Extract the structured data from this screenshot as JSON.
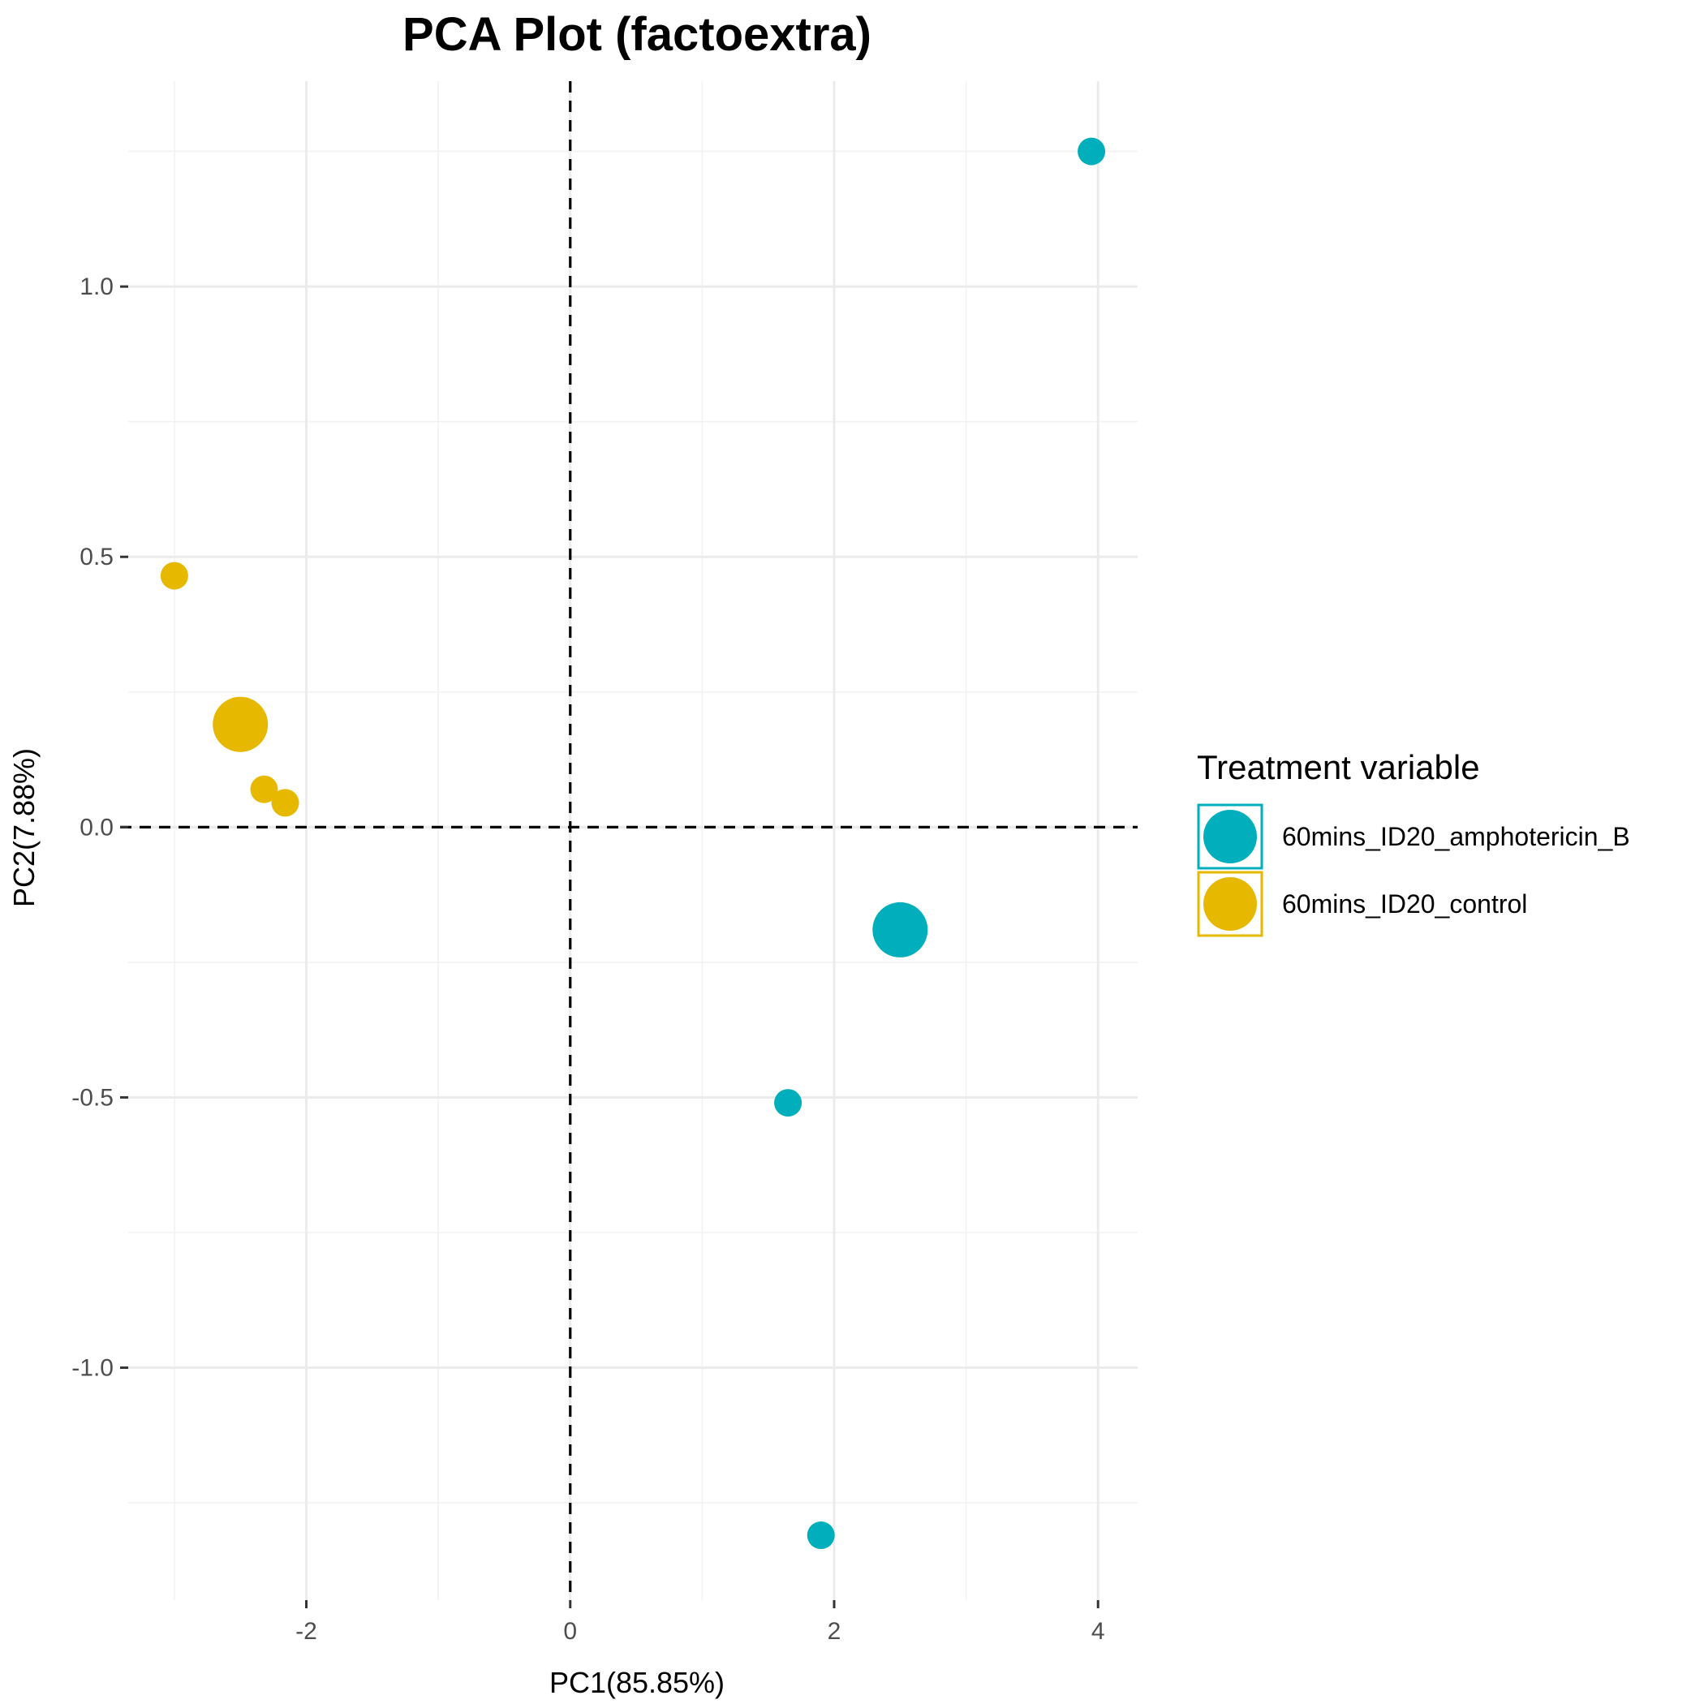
{
  "chart_data": {
    "type": "scatter",
    "title": "PCA Plot (factoextra)",
    "xlabel": "PC1(85.85%)",
    "ylabel": "PC2(7.88%)",
    "xlim": [
      -3.35,
      4.3
    ],
    "ylim": [
      -1.43,
      1.38
    ],
    "x_ticks": [
      -2,
      0,
      2,
      4
    ],
    "x_tick_labels": [
      "-2",
      "0",
      "2",
      "4"
    ],
    "y_ticks": [
      -1.0,
      -0.5,
      0.0,
      0.5,
      1.0
    ],
    "y_tick_labels": [
      "-1.0",
      "-0.5",
      "0.0",
      "0.5",
      "1.0"
    ],
    "grid": true,
    "reference_lines": {
      "x": 0,
      "y": 0,
      "style": "dashed"
    },
    "legend": {
      "title": "Treatment variable",
      "position": "right",
      "entries": [
        {
          "label": "60mins_ID20_amphotericin_B",
          "color": "#00AFBB"
        },
        {
          "label": "60mins_ID20_control",
          "color": "#E7B800"
        }
      ]
    },
    "series": [
      {
        "name": "60mins_ID20_amphotericin_B",
        "color": "#00AFBB",
        "points": [
          {
            "x": 3.95,
            "y": 1.25
          },
          {
            "x": 1.65,
            "y": -0.51
          },
          {
            "x": 1.9,
            "y": -1.31
          }
        ],
        "centroid": {
          "x": 2.5,
          "y": -0.19
        }
      },
      {
        "name": "60mins_ID20_control",
        "color": "#E7B800",
        "points": [
          {
            "x": -3.0,
            "y": 0.465
          },
          {
            "x": -2.32,
            "y": 0.07
          },
          {
            "x": -2.16,
            "y": 0.045
          }
        ],
        "centroid": {
          "x": -2.5,
          "y": 0.19
        }
      }
    ]
  }
}
